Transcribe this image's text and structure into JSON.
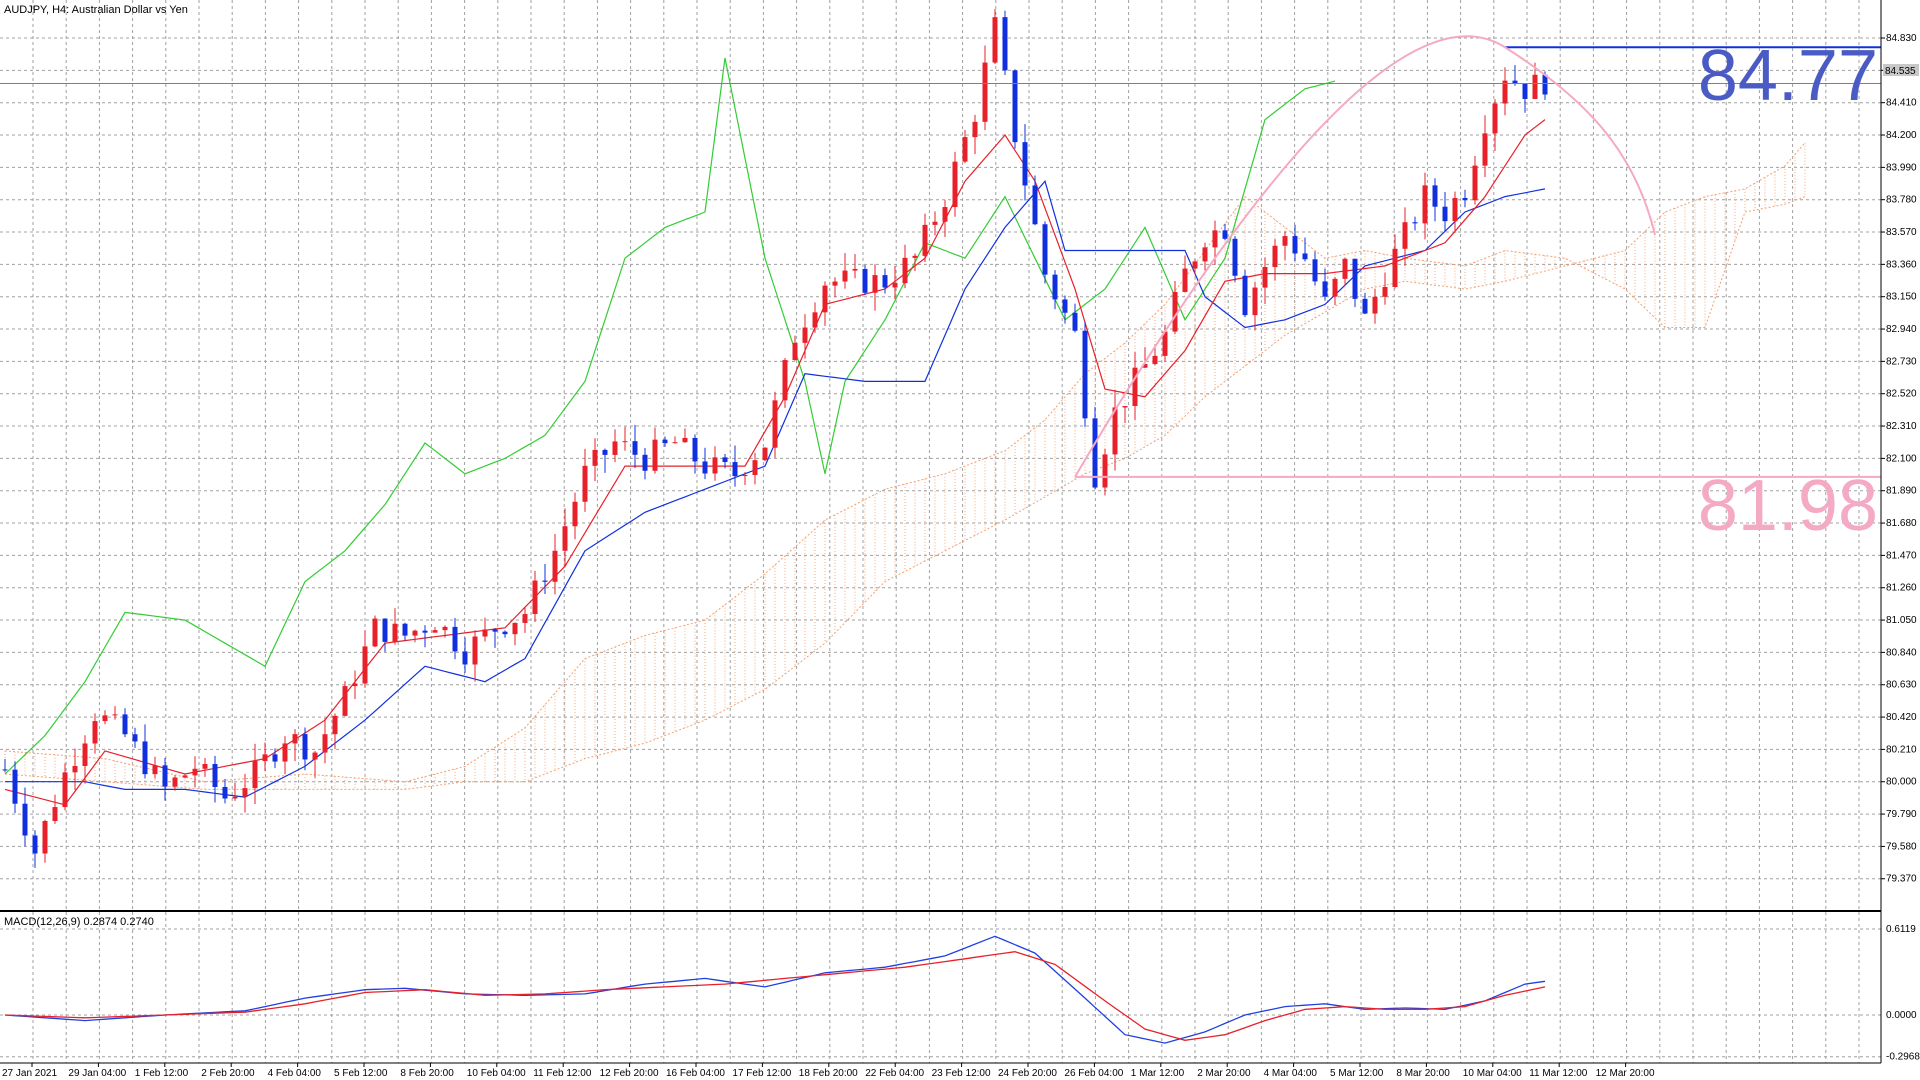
{
  "header": {
    "main_title": "AUDJPY, H4:  Australian Dollar vs Yen",
    "macd_title": "MACD(12,26,9) 0.2874 0.2740"
  },
  "current_price_tag": "84.535",
  "annotations": {
    "high_label": "84.77",
    "low_label": "81.98",
    "high_color": "#4a5cc4",
    "low_color": "#f4a9c4"
  },
  "colors": {
    "up_candle": "#e8202a",
    "down_candle": "#1030e0",
    "tenkan": "#e8202a",
    "kijun": "#1030e0",
    "chikou": "#33cc33",
    "cloud": "#f5a070",
    "macd_line": "#2040e0",
    "signal_line": "#e8202a",
    "arc": "#f4a9c4",
    "grid": "#a0a0a0"
  },
  "chart_data": [
    {
      "type": "candlestick",
      "title": "AUDJPY, H4:  Australian Dollar vs Yen",
      "indicators": [
        "Ichimoku Kinko Hyo",
        "Tenkan-sen",
        "Kijun-sen",
        "Chikou Span",
        "Kumo"
      ],
      "y_ticks": [
        "84.830",
        "84.620",
        "84.410",
        "84.200",
        "83.990",
        "83.780",
        "83.570",
        "83.360",
        "83.150",
        "82.940",
        "82.730",
        "82.520",
        "82.310",
        "82.100",
        "81.890",
        "81.680",
        "81.470",
        "81.260",
        "81.050",
        "80.840",
        "80.630",
        "80.420",
        "80.210",
        "80.000",
        "79.790",
        "79.580",
        "79.370"
      ],
      "ylim": [
        79.18,
        84.96
      ],
      "x_tick_labels": [
        "27 Jan 2021",
        "29 Jan 04:00",
        "1 Feb 12:00",
        "2 Feb 20:00",
        "4 Feb 04:00",
        "5 Feb 12:00",
        "8 Feb 20:00",
        "10 Feb 04:00",
        "11 Feb 12:00",
        "12 Feb 20:00",
        "16 Feb 04:00",
        "17 Feb 12:00",
        "18 Feb 20:00",
        "22 Feb 04:00",
        "23 Feb 12:00",
        "24 Feb 20:00",
        "26 Feb 04:00",
        "1 Mar 12:00",
        "2 Mar 20:00",
        "4 Mar 04:00",
        "5 Mar 12:00",
        "8 Mar 20:00",
        "10 Mar 04:00",
        "11 Mar 12:00",
        "12 Mar 20:00"
      ],
      "close_anchors": [
        [
          0,
          80.08
        ],
        [
          3,
          79.55
        ],
        [
          6,
          80.05
        ],
        [
          9,
          80.45
        ],
        [
          12,
          80.3
        ],
        [
          16,
          79.95
        ],
        [
          19,
          80.1
        ],
        [
          22,
          79.9
        ],
        [
          25,
          80.05
        ],
        [
          28,
          80.3
        ],
        [
          31,
          80.2
        ],
        [
          34,
          80.55
        ],
        [
          37,
          81.0
        ],
        [
          40,
          80.95
        ],
        [
          43,
          81.05
        ],
        [
          46,
          80.85
        ],
        [
          49,
          81.0
        ],
        [
          52,
          81.1
        ],
        [
          55,
          81.5
        ],
        [
          58,
          82.0
        ],
        [
          61,
          82.2
        ],
        [
          64,
          82.1
        ],
        [
          67,
          82.2
        ],
        [
          70,
          82.05
        ],
        [
          73,
          82.0
        ],
        [
          76,
          82.2
        ],
        [
          79,
          82.9
        ],
        [
          82,
          83.25
        ],
        [
          85,
          83.25
        ],
        [
          88,
          83.25
        ],
        [
          91,
          83.4
        ],
        [
          94,
          83.8
        ],
        [
          97,
          84.35
        ],
        [
          99,
          84.9
        ],
        [
          101,
          84.2
        ],
        [
          104,
          83.3
        ],
        [
          107,
          82.9
        ],
        [
          109,
          82.0
        ],
        [
          111,
          82.4
        ],
        [
          113,
          82.6
        ],
        [
          116,
          82.9
        ],
        [
          118,
          83.3
        ],
        [
          120,
          83.55
        ],
        [
          122,
          83.6
        ],
        [
          124,
          83.1
        ],
        [
          126,
          83.35
        ],
        [
          128,
          83.55
        ],
        [
          130,
          83.4
        ],
        [
          132,
          83.1
        ],
        [
          134,
          83.35
        ],
        [
          136,
          83.0
        ],
        [
          138,
          83.3
        ],
        [
          140,
          83.55
        ],
        [
          142,
          83.8
        ],
        [
          144,
          83.7
        ],
        [
          146,
          83.85
        ],
        [
          148,
          84.3
        ],
        [
          150,
          84.6
        ],
        [
          152,
          84.5
        ],
        [
          154,
          84.55
        ]
      ],
      "tenkan_anchors": [
        [
          0,
          79.95
        ],
        [
          6,
          79.85
        ],
        [
          10,
          80.2
        ],
        [
          18,
          80.05
        ],
        [
          26,
          80.15
        ],
        [
          32,
          80.4
        ],
        [
          38,
          80.9
        ],
        [
          44,
          80.95
        ],
        [
          50,
          81.0
        ],
        [
          56,
          81.4
        ],
        [
          62,
          82.05
        ],
        [
          68,
          82.05
        ],
        [
          74,
          82.05
        ],
        [
          78,
          82.5
        ],
        [
          82,
          83.1
        ],
        [
          88,
          83.2
        ],
        [
          92,
          83.4
        ],
        [
          96,
          83.9
        ],
        [
          100,
          84.2
        ],
        [
          103,
          83.9
        ],
        [
          107,
          83.2
        ],
        [
          110,
          82.55
        ],
        [
          114,
          82.5
        ],
        [
          118,
          82.8
        ],
        [
          122,
          83.25
        ],
        [
          126,
          83.3
        ],
        [
          132,
          83.3
        ],
        [
          138,
          83.35
        ],
        [
          144,
          83.5
        ],
        [
          148,
          83.8
        ],
        [
          152,
          84.2
        ],
        [
          154,
          84.3
        ]
      ],
      "kijun_anchors": [
        [
          0,
          80.0
        ],
        [
          8,
          80.0
        ],
        [
          12,
          79.95
        ],
        [
          18,
          79.95
        ],
        [
          24,
          79.9
        ],
        [
          30,
          80.1
        ],
        [
          36,
          80.4
        ],
        [
          42,
          80.75
        ],
        [
          48,
          80.65
        ],
        [
          52,
          80.8
        ],
        [
          58,
          81.5
        ],
        [
          64,
          81.75
        ],
        [
          70,
          81.9
        ],
        [
          76,
          82.05
        ],
        [
          80,
          82.65
        ],
        [
          86,
          82.6
        ],
        [
          92,
          82.6
        ],
        [
          96,
          83.2
        ],
        [
          100,
          83.6
        ],
        [
          104,
          83.9
        ],
        [
          106,
          83.45
        ],
        [
          112,
          83.45
        ],
        [
          118,
          83.45
        ],
        [
          120,
          83.15
        ],
        [
          124,
          82.95
        ],
        [
          128,
          83.0
        ],
        [
          132,
          83.1
        ],
        [
          136,
          83.35
        ],
        [
          142,
          83.45
        ],
        [
          146,
          83.7
        ],
        [
          150,
          83.8
        ],
        [
          154,
          83.85
        ]
      ],
      "chikou_anchors": [
        [
          0,
          80.05
        ],
        [
          4,
          80.3
        ],
        [
          8,
          80.65
        ],
        [
          12,
          81.1
        ],
        [
          18,
          81.05
        ],
        [
          22,
          80.9
        ],
        [
          26,
          80.75
        ],
        [
          30,
          81.3
        ],
        [
          34,
          81.5
        ],
        [
          38,
          81.8
        ],
        [
          42,
          82.2
        ],
        [
          46,
          82.0
        ],
        [
          50,
          82.1
        ],
        [
          54,
          82.25
        ],
        [
          58,
          82.6
        ],
        [
          62,
          83.4
        ],
        [
          66,
          83.6
        ],
        [
          70,
          83.7
        ],
        [
          72,
          84.7
        ],
        [
          76,
          83.4
        ],
        [
          80,
          82.6
        ],
        [
          82,
          82.0
        ],
        [
          84,
          82.6
        ],
        [
          88,
          83.0
        ],
        [
          92,
          83.5
        ],
        [
          96,
          83.4
        ],
        [
          100,
          83.8
        ],
        [
          103,
          83.4
        ],
        [
          106,
          83.0
        ],
        [
          110,
          83.2
        ],
        [
          114,
          83.6
        ],
        [
          118,
          83.0
        ],
        [
          122,
          83.4
        ],
        [
          126,
          84.3
        ],
        [
          130,
          84.5
        ],
        [
          133,
          84.55
        ]
      ],
      "cloud_anchors": [
        [
          0,
          80.2,
          80.05
        ],
        [
          10,
          80.15,
          80.0
        ],
        [
          20,
          80.0,
          79.95
        ],
        [
          30,
          80.05,
          79.95
        ],
        [
          40,
          80.0,
          79.95
        ],
        [
          46,
          80.1,
          80.0
        ],
        [
          52,
          80.35,
          80.0
        ],
        [
          58,
          80.8,
          80.15
        ],
        [
          64,
          80.95,
          80.25
        ],
        [
          70,
          81.05,
          80.4
        ],
        [
          76,
          81.35,
          80.6
        ],
        [
          82,
          81.7,
          80.9
        ],
        [
          88,
          81.9,
          81.3
        ],
        [
          94,
          82.0,
          81.5
        ],
        [
          100,
          82.15,
          81.7
        ],
        [
          104,
          82.35,
          81.85
        ],
        [
          108,
          82.65,
          82.0
        ],
        [
          112,
          82.85,
          82.1
        ],
        [
          116,
          83.1,
          82.25
        ],
        [
          120,
          83.45,
          82.5
        ],
        [
          124,
          83.8,
          82.7
        ],
        [
          128,
          83.6,
          82.9
        ],
        [
          132,
          83.4,
          83.05
        ],
        [
          136,
          83.45,
          83.2
        ],
        [
          140,
          83.4,
          83.25
        ],
        [
          146,
          83.35,
          83.2
        ],
        [
          150,
          83.45,
          83.25
        ],
        [
          156,
          83.4,
          83.35
        ],
        [
          162,
          83.2,
          83.45
        ],
        [
          166,
          82.95,
          83.7
        ],
        [
          170,
          82.95,
          83.8
        ],
        [
          174,
          83.7,
          83.85
        ],
        [
          178,
          83.75,
          84.0
        ],
        [
          180,
          83.8,
          84.15
        ]
      ],
      "horizontal_levels": [
        84.77,
        81.98
      ]
    },
    {
      "type": "line",
      "title": "MACD(12,26,9) 0.2874 0.2740",
      "y_ticks": [
        "0.6119",
        "0.0000",
        "-0.2968"
      ],
      "ylim": [
        -0.32,
        0.64
      ],
      "series": [
        {
          "name": "MACD",
          "anchors": [
            [
              0,
              0.0
            ],
            [
              8,
              -0.04
            ],
            [
              16,
              0.0
            ],
            [
              24,
              0.03
            ],
            [
              30,
              0.12
            ],
            [
              36,
              0.18
            ],
            [
              40,
              0.19
            ],
            [
              46,
              0.15
            ],
            [
              52,
              0.14
            ],
            [
              58,
              0.15
            ],
            [
              64,
              0.22
            ],
            [
              70,
              0.26
            ],
            [
              76,
              0.2
            ],
            [
              82,
              0.3
            ],
            [
              88,
              0.34
            ],
            [
              94,
              0.42
            ],
            [
              99,
              0.56
            ],
            [
              103,
              0.44
            ],
            [
              108,
              0.12
            ],
            [
              112,
              -0.14
            ],
            [
              116,
              -0.2
            ],
            [
              120,
              -0.12
            ],
            [
              124,
              0.0
            ],
            [
              128,
              0.06
            ],
            [
              132,
              0.08
            ],
            [
              136,
              0.04
            ],
            [
              140,
              0.05
            ],
            [
              144,
              0.04
            ],
            [
              148,
              0.1
            ],
            [
              152,
              0.22
            ],
            [
              154,
              0.24
            ]
          ]
        },
        {
          "name": "Signal",
          "anchors": [
            [
              0,
              0.0
            ],
            [
              8,
              -0.02
            ],
            [
              16,
              0.0
            ],
            [
              24,
              0.02
            ],
            [
              30,
              0.08
            ],
            [
              36,
              0.16
            ],
            [
              42,
              0.18
            ],
            [
              48,
              0.14
            ],
            [
              54,
              0.15
            ],
            [
              60,
              0.18
            ],
            [
              66,
              0.2
            ],
            [
              72,
              0.22
            ],
            [
              78,
              0.26
            ],
            [
              84,
              0.3
            ],
            [
              90,
              0.34
            ],
            [
              96,
              0.4
            ],
            [
              101,
              0.45
            ],
            [
              105,
              0.36
            ],
            [
              110,
              0.1
            ],
            [
              114,
              -0.1
            ],
            [
              118,
              -0.18
            ],
            [
              122,
              -0.14
            ],
            [
              126,
              -0.04
            ],
            [
              130,
              0.04
            ],
            [
              134,
              0.06
            ],
            [
              138,
              0.04
            ],
            [
              142,
              0.04
            ],
            [
              146,
              0.06
            ],
            [
              150,
              0.14
            ],
            [
              154,
              0.2
            ]
          ]
        }
      ]
    }
  ]
}
